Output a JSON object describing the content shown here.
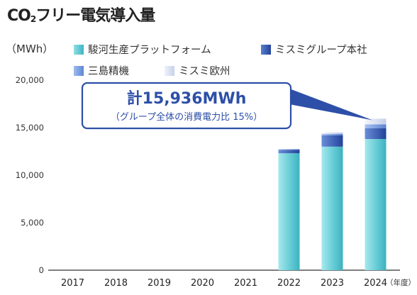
{
  "title_main": "CO",
  "title_sub": "2",
  "title_rest": "フリー電気導入量",
  "unit_label": "（MWh）",
  "legend": [
    {
      "name": "駿河生産プラットフォーム",
      "color": "#5ec7d0"
    },
    {
      "name": "ミスミグループ本社",
      "color": "#3b5db0"
    },
    {
      "name": "三島精機",
      "color": "#6e94d8"
    },
    {
      "name": "ミスミ欧州",
      "color": "#d3dbee"
    }
  ],
  "chart_data": {
    "type": "bar",
    "stacked": true,
    "categories": [
      "2017",
      "2018",
      "2019",
      "2020",
      "2021",
      "2022",
      "2023",
      "2024"
    ],
    "x_suffix": "（年度）",
    "ylim": [
      0,
      20000
    ],
    "yticks": [
      "0",
      "5,000",
      "10,000",
      "15,000",
      "20,000"
    ],
    "ytick_values": [
      0,
      5000,
      10000,
      15000,
      20000
    ],
    "series": [
      {
        "name": "駿河生産プラットフォーム",
        "values": [
          0,
          0,
          0,
          0,
          0,
          12300,
          13000,
          13800
        ]
      },
      {
        "name": "ミスミグループ本社",
        "values": [
          0,
          0,
          0,
          0,
          0,
          350,
          1200,
          1150
        ]
      },
      {
        "name": "三島精機",
        "values": [
          0,
          0,
          0,
          0,
          0,
          80,
          150,
          400
        ]
      },
      {
        "name": "ミスミ欧州",
        "values": [
          0,
          0,
          0,
          0,
          0,
          30,
          150,
          586
        ]
      }
    ],
    "callout": {
      "line1": "計15,936MWh",
      "line2": "（グループ全体の消費電力比 15%）",
      "target_category": "2024"
    }
  }
}
